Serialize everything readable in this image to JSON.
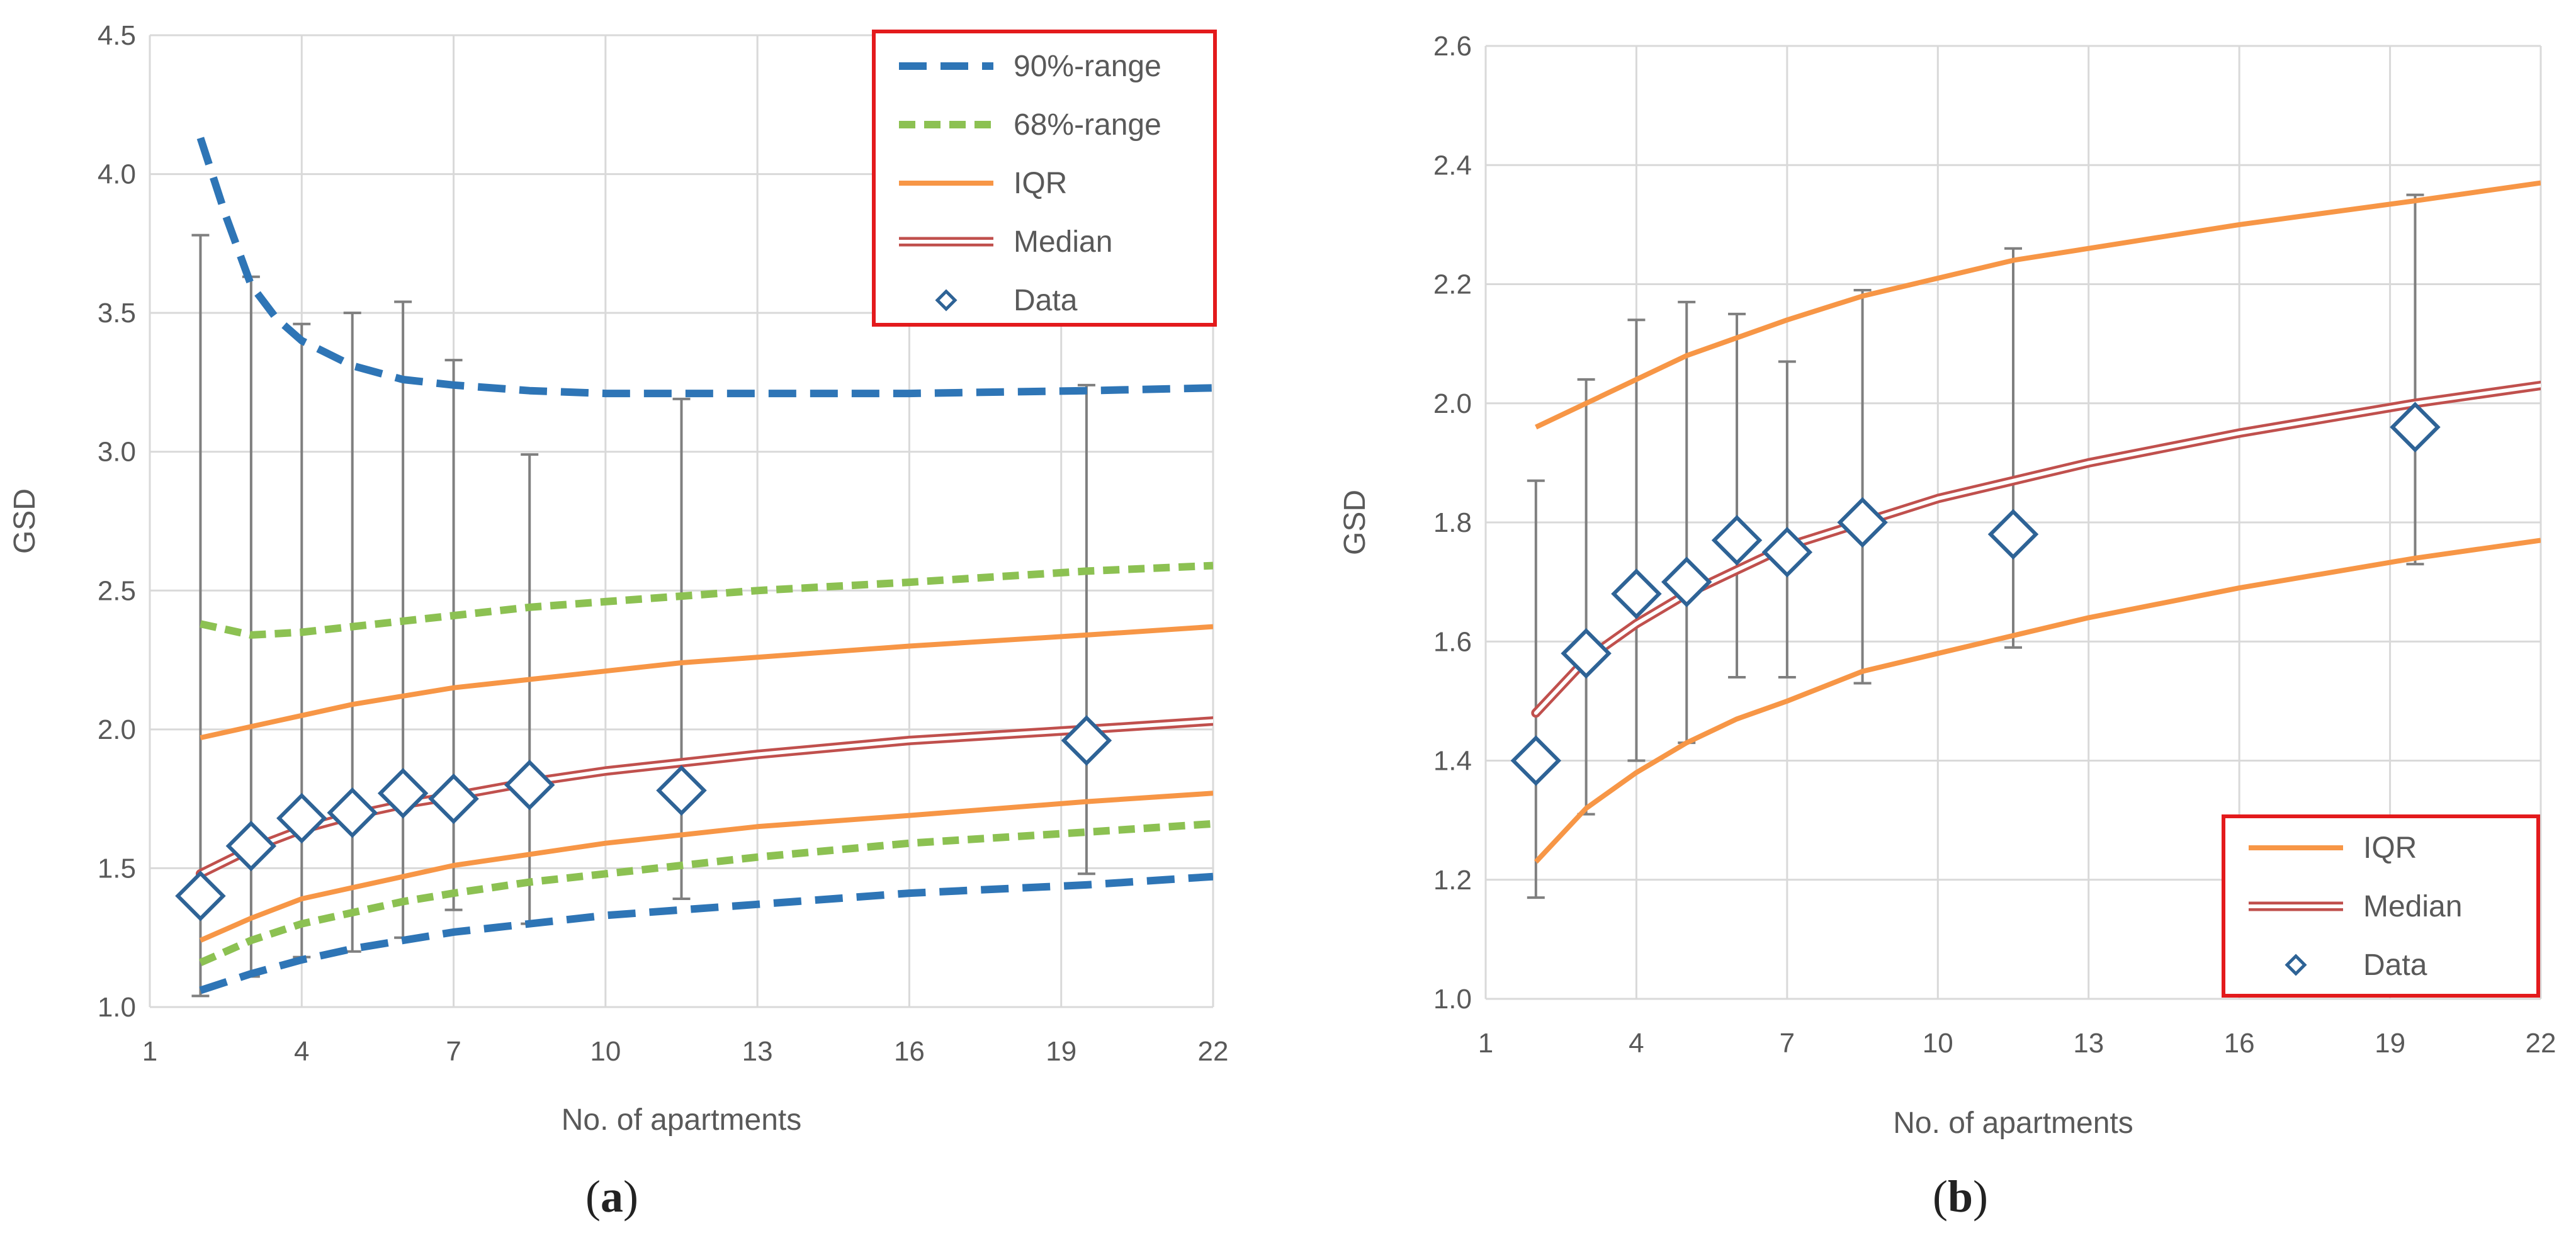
{
  "chart_data": [
    {
      "panel": "(a)",
      "type": "line",
      "xlabel": "No. of apartments",
      "ylabel": "GSD",
      "xlim": [
        1,
        22
      ],
      "ylim": [
        1.0,
        4.5
      ],
      "xticks": [
        1,
        4,
        7,
        10,
        13,
        16,
        19,
        22
      ],
      "yticks": [
        1.0,
        1.5,
        2.0,
        2.5,
        3.0,
        3.5,
        4.0,
        4.5
      ],
      "grid": true,
      "legend_position": "top-right",
      "legend": [
        "90%-range",
        "68%-range",
        "IQR",
        "Median",
        "Data"
      ],
      "series": [
        {
          "name": "90%-range upper",
          "legend": "90%-range",
          "style": "dashed",
          "color": "#2E75B6",
          "x": [
            2,
            2.5,
            3,
            3.5,
            4,
            5,
            6,
            7,
            8.5,
            10,
            11.5,
            13,
            16,
            19.5,
            22
          ],
          "y": [
            4.13,
            3.85,
            3.6,
            3.48,
            3.4,
            3.31,
            3.26,
            3.24,
            3.22,
            3.21,
            3.21,
            3.21,
            3.21,
            3.22,
            3.23
          ]
        },
        {
          "name": "90%-range lower",
          "legend": "90%-range",
          "style": "dashed",
          "color": "#2E75B6",
          "x": [
            2,
            3,
            4,
            5,
            6,
            7,
            8.5,
            10,
            11.5,
            13,
            16,
            19.5,
            22
          ],
          "y": [
            1.06,
            1.12,
            1.17,
            1.21,
            1.24,
            1.27,
            1.3,
            1.33,
            1.35,
            1.37,
            1.41,
            1.44,
            1.47
          ]
        },
        {
          "name": "68%-range upper",
          "legend": "68%-range",
          "style": "dashed",
          "color": "#8CC152",
          "x": [
            2,
            3,
            4,
            5,
            6,
            7,
            8.5,
            10,
            11.5,
            13,
            16,
            19.5,
            22
          ],
          "y": [
            2.38,
            2.34,
            2.35,
            2.37,
            2.39,
            2.41,
            2.44,
            2.46,
            2.48,
            2.5,
            2.53,
            2.57,
            2.59
          ]
        },
        {
          "name": "68%-range lower",
          "legend": "68%-range",
          "style": "dashed",
          "color": "#8CC152",
          "x": [
            2,
            3,
            4,
            5,
            6,
            7,
            8.5,
            10,
            11.5,
            13,
            16,
            19.5,
            22
          ],
          "y": [
            1.16,
            1.24,
            1.3,
            1.34,
            1.38,
            1.41,
            1.45,
            1.48,
            1.51,
            1.54,
            1.59,
            1.63,
            1.66
          ]
        },
        {
          "name": "IQR upper",
          "legend": "IQR",
          "style": "solid",
          "color": "#F79646",
          "x": [
            2,
            3,
            4,
            5,
            6,
            7,
            8.5,
            10,
            11.5,
            13,
            16,
            19.5,
            22
          ],
          "y": [
            1.97,
            2.01,
            2.05,
            2.09,
            2.12,
            2.15,
            2.18,
            2.21,
            2.24,
            2.26,
            2.3,
            2.34,
            2.37
          ]
        },
        {
          "name": "IQR lower",
          "legend": "IQR",
          "style": "solid",
          "color": "#F79646",
          "x": [
            2,
            3,
            4,
            5,
            6,
            7,
            8.5,
            10,
            11.5,
            13,
            16,
            19.5,
            22
          ],
          "y": [
            1.24,
            1.32,
            1.39,
            1.43,
            1.47,
            1.51,
            1.55,
            1.59,
            1.62,
            1.65,
            1.69,
            1.74,
            1.77
          ]
        },
        {
          "name": "Median",
          "legend": "Median",
          "style": "double",
          "color": "#C0504D",
          "x": [
            2,
            3,
            4,
            5,
            6,
            7,
            8.5,
            10,
            11.5,
            13,
            16,
            19.5,
            22
          ],
          "y": [
            1.48,
            1.57,
            1.64,
            1.69,
            1.73,
            1.76,
            1.81,
            1.85,
            1.88,
            1.91,
            1.96,
            2.0,
            2.03
          ]
        }
      ],
      "points": {
        "name": "Data",
        "x": [
          2,
          3,
          4,
          5,
          6,
          7,
          8.5,
          11.5,
          19.5
        ],
        "y": [
          1.4,
          1.58,
          1.68,
          1.7,
          1.77,
          1.75,
          1.8,
          1.78,
          1.96
        ],
        "err_low": [
          1.04,
          1.11,
          1.18,
          1.2,
          1.25,
          1.35,
          1.3,
          1.39,
          1.48
        ],
        "err_high": [
          3.78,
          3.63,
          3.46,
          3.5,
          3.54,
          3.33,
          2.99,
          3.19,
          3.24
        ]
      }
    },
    {
      "panel": "(b)",
      "type": "line",
      "xlabel": "No. of apartments",
      "ylabel": "GSD",
      "xlim": [
        1,
        22
      ],
      "ylim": [
        1.0,
        2.6
      ],
      "xticks": [
        1,
        4,
        7,
        10,
        13,
        16,
        19,
        22
      ],
      "yticks": [
        1.0,
        1.2,
        1.4,
        1.6,
        1.8,
        2.0,
        2.2,
        2.4,
        2.6
      ],
      "grid": true,
      "legend_position": "bottom-right",
      "legend": [
        "IQR",
        "Median",
        "Data"
      ],
      "series": [
        {
          "name": "IQR upper",
          "legend": "IQR",
          "style": "solid",
          "color": "#F79646",
          "x": [
            2,
            3,
            4,
            5,
            6,
            7,
            8.5,
            10,
            11.5,
            13,
            16,
            19.5,
            22
          ],
          "y": [
            1.96,
            2.0,
            2.04,
            2.08,
            2.11,
            2.14,
            2.18,
            2.21,
            2.24,
            2.26,
            2.3,
            2.34,
            2.37
          ]
        },
        {
          "name": "IQR lower",
          "legend": "IQR",
          "style": "solid",
          "color": "#F79646",
          "x": [
            2,
            3,
            4,
            5,
            6,
            7,
            8.5,
            10,
            11.5,
            13,
            16,
            19.5,
            22
          ],
          "y": [
            1.23,
            1.32,
            1.38,
            1.43,
            1.47,
            1.5,
            1.55,
            1.58,
            1.61,
            1.64,
            1.69,
            1.74,
            1.77
          ]
        },
        {
          "name": "Median",
          "legend": "Median",
          "style": "double",
          "color": "#C0504D",
          "x": [
            2,
            3,
            4,
            5,
            6,
            7,
            8.5,
            10,
            11.5,
            13,
            16,
            19.5,
            22
          ],
          "y": [
            1.48,
            1.57,
            1.63,
            1.68,
            1.72,
            1.76,
            1.8,
            1.84,
            1.87,
            1.9,
            1.95,
            2.0,
            2.03
          ]
        }
      ],
      "points": {
        "name": "Data",
        "x": [
          2,
          3,
          4,
          5,
          6,
          7,
          8.5,
          11.5,
          19.5
        ],
        "y": [
          1.4,
          1.58,
          1.68,
          1.7,
          1.77,
          1.75,
          1.8,
          1.78,
          1.96
        ],
        "err_low": [
          1.17,
          1.31,
          1.4,
          1.43,
          1.54,
          1.54,
          1.53,
          1.59,
          1.73
        ],
        "err_high": [
          1.87,
          2.04,
          2.14,
          2.17,
          2.15,
          2.07,
          2.19,
          2.26,
          2.35
        ]
      }
    }
  ]
}
